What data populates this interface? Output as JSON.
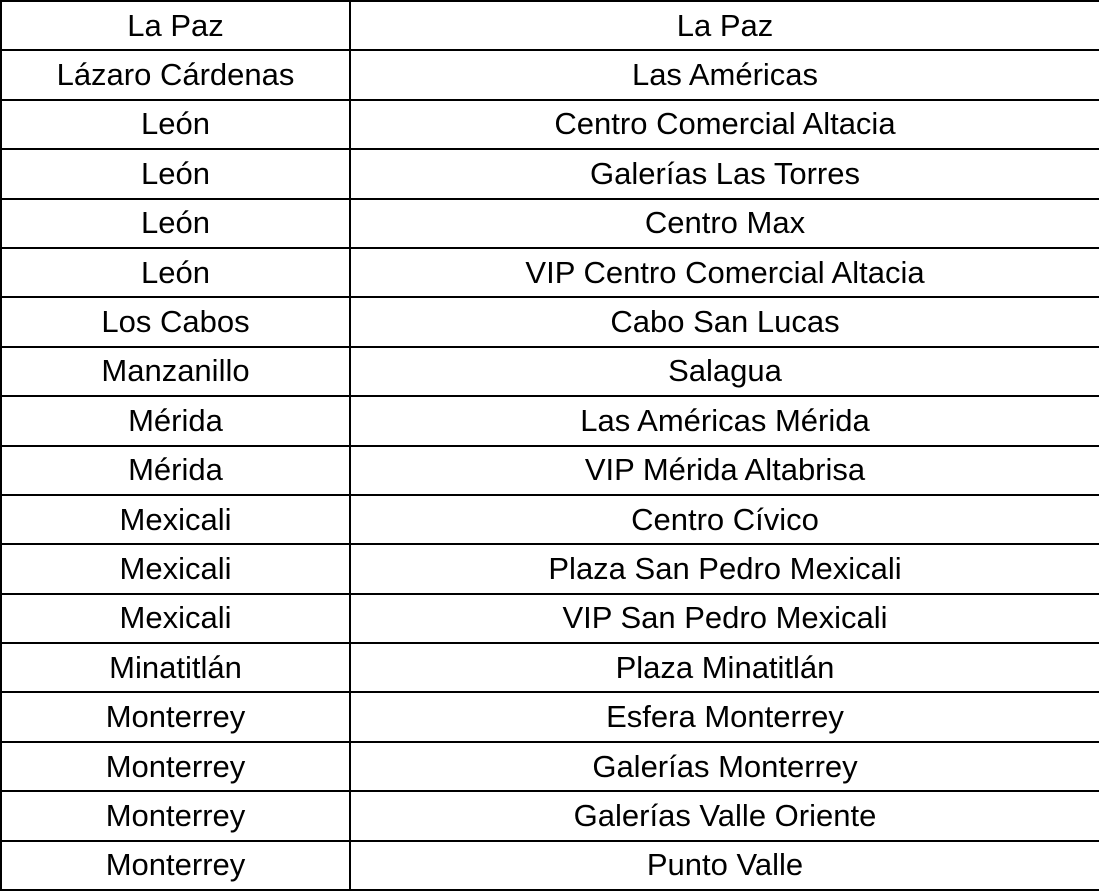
{
  "table": {
    "rows": [
      [
        "La Paz",
        "La Paz"
      ],
      [
        "Lázaro Cárdenas",
        "Las Américas"
      ],
      [
        "León",
        "Centro Comercial Altacia"
      ],
      [
        "León",
        "Galerías Las Torres"
      ],
      [
        "León",
        "Centro Max"
      ],
      [
        "León",
        "VIP Centro Comercial Altacia"
      ],
      [
        "Los Cabos",
        "Cabo San Lucas"
      ],
      [
        "Manzanillo",
        "Salagua"
      ],
      [
        "Mérida",
        "Las Américas Mérida"
      ],
      [
        "Mérida",
        "VIP Mérida Altabrisa"
      ],
      [
        "Mexicali",
        "Centro Cívico"
      ],
      [
        "Mexicali",
        "Plaza San Pedro Mexicali"
      ],
      [
        "Mexicali",
        "VIP San Pedro Mexicali"
      ],
      [
        "Minatitlán",
        "Plaza Minatitlán"
      ],
      [
        "Monterrey",
        "Esfera Monterrey"
      ],
      [
        "Monterrey",
        "Galerías Monterrey"
      ],
      [
        "Monterrey",
        "Galerías Valle Oriente"
      ],
      [
        "Monterrey",
        "Punto Valle"
      ]
    ],
    "colors": {
      "border": "#000000",
      "text": "#000000",
      "background": "#ffffff"
    }
  }
}
